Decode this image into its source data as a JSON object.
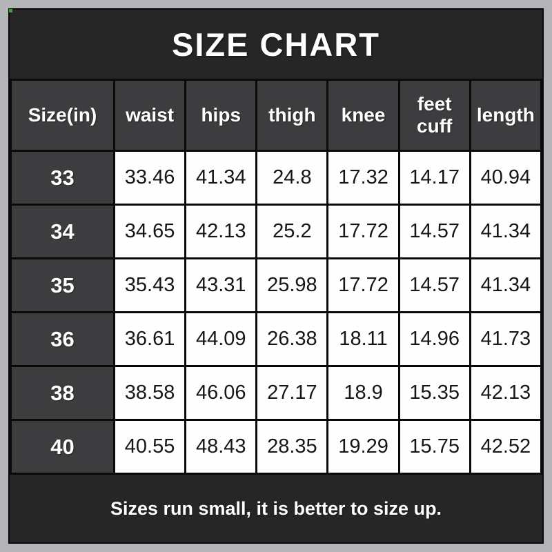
{
  "title": "SIZE CHART",
  "note": "Sizes run small, it is better to size up.",
  "colors": {
    "outer_frame": "#b4b5b9",
    "card_background": "#262626",
    "header_cell": "#3d3d40",
    "gridline": "#0a0a0a",
    "data_cell": "#fefefe",
    "title_text": "#ffffff",
    "data_text": "#161616",
    "stray_dot": "#3f9f3b"
  },
  "chart_data": {
    "type": "table",
    "title": "SIZE CHART",
    "columns": [
      "Size(in)",
      "waist",
      "hips",
      "thigh",
      "knee",
      "feet cuff",
      "length"
    ],
    "rows": [
      {
        "size": "33",
        "values": [
          "33.46",
          "41.34",
          "24.8",
          "17.32",
          "14.17",
          "40.94"
        ]
      },
      {
        "size": "34",
        "values": [
          "34.65",
          "42.13",
          "25.2",
          "17.72",
          "14.57",
          "41.34"
        ]
      },
      {
        "size": "35",
        "values": [
          "35.43",
          "43.31",
          "25.98",
          "17.72",
          "14.57",
          "41.34"
        ]
      },
      {
        "size": "36",
        "values": [
          "36.61",
          "44.09",
          "26.38",
          "18.11",
          "14.96",
          "41.73"
        ]
      },
      {
        "size": "38",
        "values": [
          "38.58",
          "46.06",
          "27.17",
          "18.9",
          "15.35",
          "42.13"
        ]
      },
      {
        "size": "40",
        "values": [
          "40.55",
          "48.43",
          "28.35",
          "19.29",
          "15.75",
          "42.52"
        ]
      }
    ],
    "footnote": "Sizes run small, it is better to size up.",
    "units": "inches"
  }
}
